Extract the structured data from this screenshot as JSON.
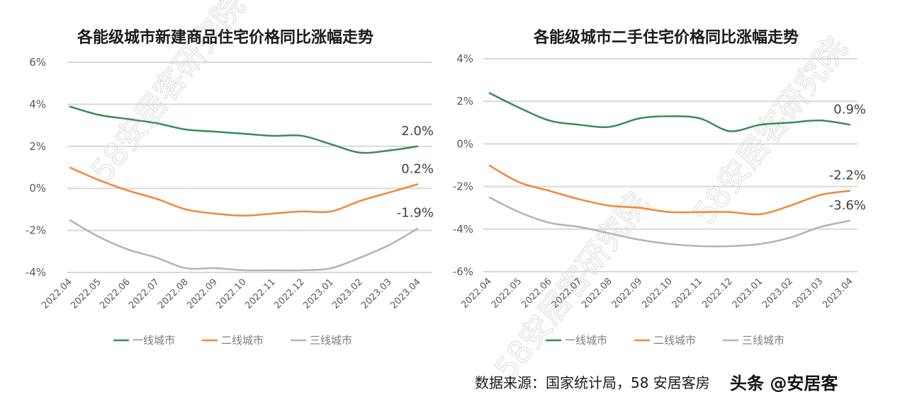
{
  "watermark": "58安居客研究院",
  "chart_data": [
    {
      "type": "line",
      "title": "各能级城市新建商品住宅价格同比涨幅走势",
      "x": [
        "2022.04",
        "2022.05",
        "2022.06",
        "2022.07",
        "2022.08",
        "2022.09",
        "2022.10",
        "2022.11",
        "2022.12",
        "2023.01",
        "2023.02",
        "2023.03",
        "2023.04"
      ],
      "yticks": [
        "6%",
        "4%",
        "2%",
        "0%",
        "-2%",
        "-4%"
      ],
      "ylim": [
        -4,
        6
      ],
      "unit": "%",
      "grid": true,
      "legend_position": "bottom",
      "series": [
        {
          "name": "一线城市",
          "color": "#3a8a5c",
          "values": [
            3.9,
            3.5,
            3.3,
            3.1,
            2.8,
            2.7,
            2.6,
            2.5,
            2.5,
            2.1,
            1.7,
            1.8,
            2.0
          ],
          "end_label": "2.0%"
        },
        {
          "name": "二线城市",
          "color": "#f0883e",
          "values": [
            1.0,
            0.4,
            -0.1,
            -0.5,
            -1.0,
            -1.2,
            -1.3,
            -1.2,
            -1.1,
            -1.1,
            -0.6,
            -0.2,
            0.2
          ],
          "end_label": "0.2%"
        },
        {
          "name": "三线城市",
          "color": "#b4b4b4",
          "values": [
            -1.5,
            -2.3,
            -2.9,
            -3.3,
            -3.8,
            -3.8,
            -3.9,
            -3.9,
            -3.9,
            -3.8,
            -3.3,
            -2.7,
            -1.9
          ],
          "end_label": "-1.9%"
        }
      ]
    },
    {
      "type": "line",
      "title": "各能级城市二手住宅价格同比涨幅走势",
      "x": [
        "2022.04",
        "2022.05",
        "2022.06",
        "2022.07",
        "2022.08",
        "2022.09",
        "2022.10",
        "2022.11",
        "2022.12",
        "2023.01",
        "2023.02",
        "2023.03",
        "2023.04"
      ],
      "yticks": [
        "4%",
        "2%",
        "0%",
        "-2%",
        "-4%",
        "-6%"
      ],
      "ylim": [
        -6,
        4
      ],
      "unit": "%",
      "grid": true,
      "legend_position": "bottom",
      "series": [
        {
          "name": "一线城市",
          "color": "#3a8a5c",
          "values": [
            2.4,
            1.7,
            1.1,
            0.9,
            0.8,
            1.2,
            1.3,
            1.2,
            0.6,
            0.9,
            1.0,
            1.1,
            0.9
          ],
          "end_label": "0.9%"
        },
        {
          "name": "二线城市",
          "color": "#f0883e",
          "values": [
            -1.0,
            -1.8,
            -2.2,
            -2.6,
            -2.9,
            -3.0,
            -3.2,
            -3.2,
            -3.2,
            -3.3,
            -2.9,
            -2.4,
            -2.2
          ],
          "end_label": "-2.2%"
        },
        {
          "name": "三线城市",
          "color": "#b4b4b4",
          "values": [
            -2.5,
            -3.2,
            -3.7,
            -3.9,
            -4.2,
            -4.5,
            -4.7,
            -4.8,
            -4.8,
            -4.7,
            -4.4,
            -3.9,
            -3.6
          ],
          "end_label": "-3.6%"
        }
      ]
    }
  ],
  "source": "数据来源：国家统计局，58 安居客房",
  "toutiao_watermark": "头条 @安居客"
}
